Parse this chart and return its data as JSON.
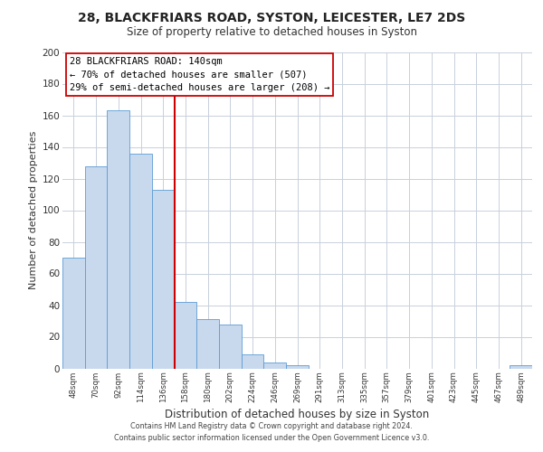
{
  "title": "28, BLACKFRIARS ROAD, SYSTON, LEICESTER, LE7 2DS",
  "subtitle": "Size of property relative to detached houses in Syston",
  "xlabel": "Distribution of detached houses by size in Syston",
  "ylabel": "Number of detached properties",
  "bar_labels": [
    "48sqm",
    "70sqm",
    "92sqm",
    "114sqm",
    "136sqm",
    "158sqm",
    "180sqm",
    "202sqm",
    "224sqm",
    "246sqm",
    "269sqm",
    "291sqm",
    "313sqm",
    "335sqm",
    "357sqm",
    "379sqm",
    "401sqm",
    "423sqm",
    "445sqm",
    "467sqm",
    "489sqm"
  ],
  "bar_values": [
    70,
    128,
    163,
    136,
    113,
    42,
    31,
    28,
    9,
    4,
    2,
    0,
    0,
    0,
    0,
    0,
    0,
    0,
    0,
    0,
    2
  ],
  "bar_color": "#c8d9ed",
  "bar_edge_color": "#5b9bd5",
  "vline_x": 4.5,
  "vline_color": "#cc0000",
  "annotation_title": "28 BLACKFRIARS ROAD: 140sqm",
  "annotation_line1": "← 70% of detached houses are smaller (507)",
  "annotation_line2": "29% of semi-detached houses are larger (208) →",
  "annotation_box_color": "#ffffff",
  "annotation_box_edge": "#cc0000",
  "ylim": [
    0,
    200
  ],
  "yticks": [
    0,
    20,
    40,
    60,
    80,
    100,
    120,
    140,
    160,
    180,
    200
  ],
  "footer_line1": "Contains HM Land Registry data © Crown copyright and database right 2024.",
  "footer_line2": "Contains public sector information licensed under the Open Government Licence v3.0.",
  "background_color": "#ffffff",
  "grid_color": "#c8d0dc"
}
